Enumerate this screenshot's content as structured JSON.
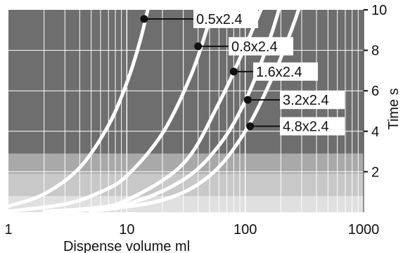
{
  "chart_data": {
    "type": "line",
    "xlabel": "Dispense volume ml",
    "ylabel": "Time s",
    "xscale": "log",
    "xlim": [
      1,
      1000
    ],
    "ylim": [
      0,
      10
    ],
    "x_ticks": [
      {
        "value": 1,
        "label": "1"
      },
      {
        "value": 10,
        "label": "10"
      },
      {
        "value": 100,
        "label": "100"
      },
      {
        "value": 1000,
        "label": "1000"
      }
    ],
    "y_ticks": [
      {
        "value": 2,
        "label": "2"
      },
      {
        "value": 4,
        "label": "4"
      },
      {
        "value": 6,
        "label": "6"
      },
      {
        "value": 8,
        "label": "8"
      },
      {
        "value": 10,
        "label": "10"
      }
    ],
    "grid": true,
    "bands": [
      {
        "from": 0,
        "to": 0.8,
        "color": "#e0e0e0"
      },
      {
        "from": 0.8,
        "to": 1.9,
        "color": "#c8c8c8"
      },
      {
        "from": 1.9,
        "to": 2.9,
        "color": "#a9a9a9"
      },
      {
        "from": 2.9,
        "to": 10,
        "color": "#6e6e6e"
      }
    ],
    "series": [
      {
        "name": "0.5x2.4",
        "x": [
          1,
          2,
          4,
          7,
          10,
          13,
          16,
          18.2
        ],
        "y": [
          0.3,
          0.9,
          2.2,
          4.3,
          6.4,
          8.5,
          10.7,
          12
        ]
      },
      {
        "name": "0.8x2.4",
        "x": [
          1,
          3,
          6,
          10,
          20,
          35,
          50,
          58
        ],
        "y": [
          0.05,
          0.4,
          1.0,
          1.8,
          3.9,
          6.8,
          9.5,
          11
        ]
      },
      {
        "name": "1.6x2.4",
        "x": [
          2,
          5,
          10,
          30,
          60,
          100,
          140,
          185
        ],
        "y": [
          0.05,
          0.2,
          0.6,
          2.4,
          5.4,
          8.2,
          10.2,
          12
        ]
      },
      {
        "name": "3.2x2.4",
        "x": [
          3,
          10,
          30,
          60,
          100,
          160,
          215
        ],
        "y": [
          0.05,
          0.4,
          1.6,
          3.3,
          5.5,
          8.5,
          11
        ]
      },
      {
        "name": "4.8x2.4",
        "x": [
          5,
          20,
          50,
          100,
          180,
          260,
          320
        ],
        "y": [
          0.05,
          0.6,
          1.8,
          4.0,
          7.0,
          9.4,
          11
        ]
      }
    ],
    "callouts": [
      {
        "label": "0.5x2.4",
        "x": 14,
        "y": 9.55
      },
      {
        "label": "0.8x2.4",
        "x": 40,
        "y": 8.2
      },
      {
        "label": "1.6x2.4",
        "x": 80,
        "y": 6.95
      },
      {
        "label": "3.2x2.4",
        "x": 105,
        "y": 5.55
      },
      {
        "label": "4.8x2.4",
        "x": 110,
        "y": 4.25
      }
    ]
  },
  "colors": {
    "curve": "#ffffff",
    "grid": "#ffffff",
    "marker": "#111111",
    "text": "#111111"
  }
}
